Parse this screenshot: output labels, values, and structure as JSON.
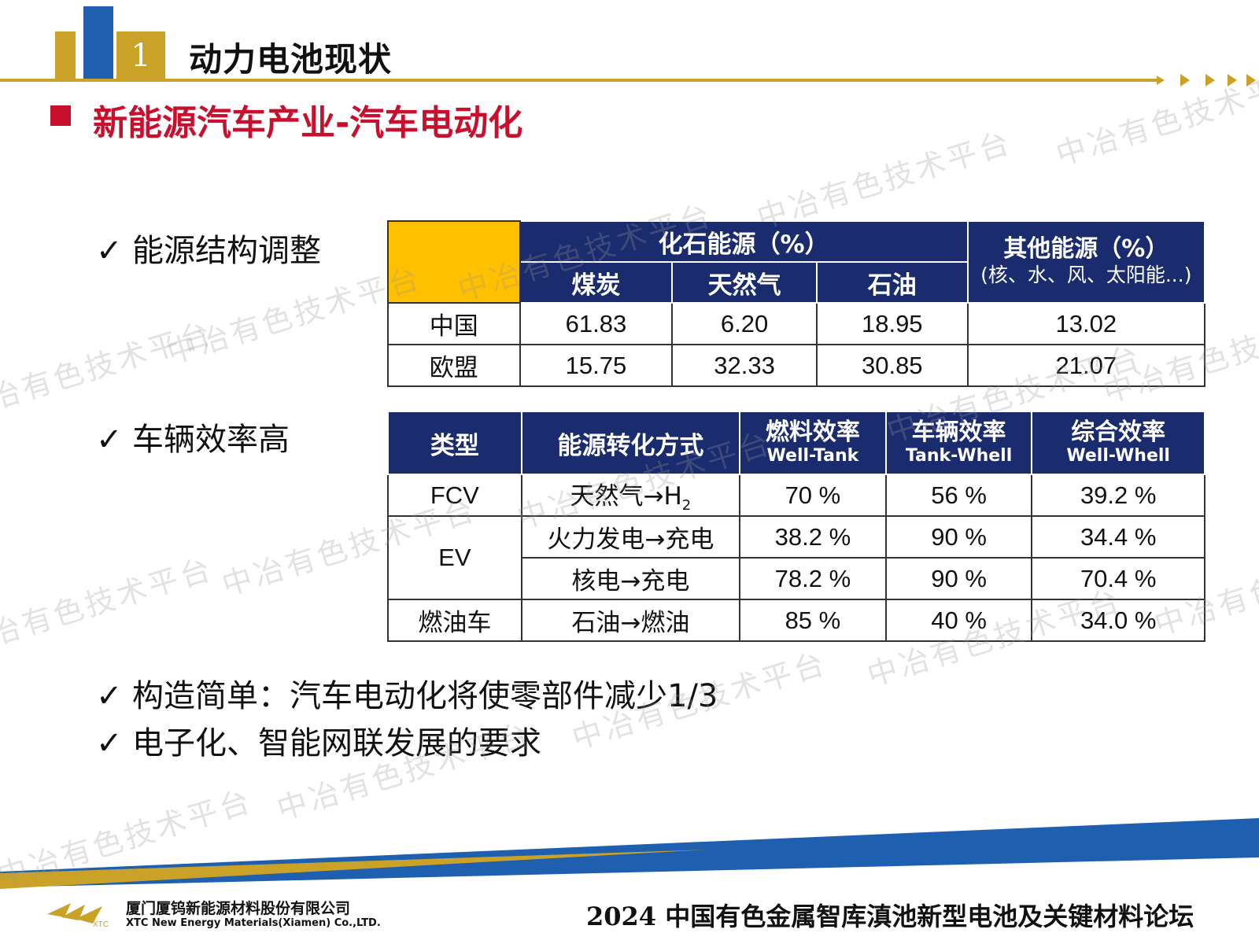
{
  "header": {
    "section_number": "1",
    "title": "动力电池现状"
  },
  "section_title": "新能源汽车产业-汽车电动化",
  "bullets": {
    "energy": "能源结构调整",
    "efficiency": "车辆效率高",
    "simple": "构造简单：汽车电动化将使零部件减少1/3",
    "smart": "电子化、智能网联发展的要求"
  },
  "check_mark": "✓",
  "table_energy": {
    "fossil_header": "化石能源（%）",
    "other_header": "其他能源（%）",
    "other_note": "(核、水、风、太阳能...)",
    "columns": [
      "煤炭",
      "天然气",
      "石油"
    ],
    "rows": [
      {
        "region": "中国",
        "coal": "61.83",
        "gas": "6.20",
        "oil": "18.95",
        "other": "13.02"
      },
      {
        "region": "欧盟",
        "coal": "15.75",
        "gas": "32.33",
        "oil": "30.85",
        "other": "21.07"
      }
    ]
  },
  "table_efficiency": {
    "headers": {
      "type": "类型",
      "conversion": "能源转化方式",
      "fuel": "燃料效率",
      "fuel_sub": "Well-Tank",
      "vehicle": "车辆效率",
      "vehicle_sub": "Tank-Whell",
      "overall": "综合效率",
      "overall_sub": "Well-Whell"
    },
    "fcv": {
      "type": "FCV",
      "conversion_prefix": "天然气→H",
      "conversion_sub": "2",
      "fuel": "70 %",
      "vehicle": "56 %",
      "overall": "39.2 %"
    },
    "ev_type": "EV",
    "ev_rows": [
      {
        "conversion": "火力发电→充电",
        "fuel": "38.2 %",
        "vehicle": "90 %",
        "overall": "34.4 %"
      },
      {
        "conversion": "核电→充电",
        "fuel": "78.2 %",
        "vehicle": "90 %",
        "overall": "70.4 %"
      }
    ],
    "ice": {
      "type": "燃油车",
      "conversion": "石油→燃油",
      "fuel": "85 %",
      "vehicle": "40 %",
      "overall": "34.0 %"
    }
  },
  "watermark_text": "中冶有色技术平台",
  "footer": {
    "company_cn": "厦门厦钨新能源材料股份有限公司",
    "company_en": "XTC New Energy Materials(Xiamen) Co.,LTD.",
    "logo_text": "XTC",
    "forum": "2024 中国有色金属智库滇池新型电池及关键材料论坛"
  },
  "colors": {
    "gold": "#c9a227",
    "blue": "#1f5fb0",
    "navy": "#1a2b6e",
    "red": "#c8102e",
    "yellow": "#ffc000"
  }
}
